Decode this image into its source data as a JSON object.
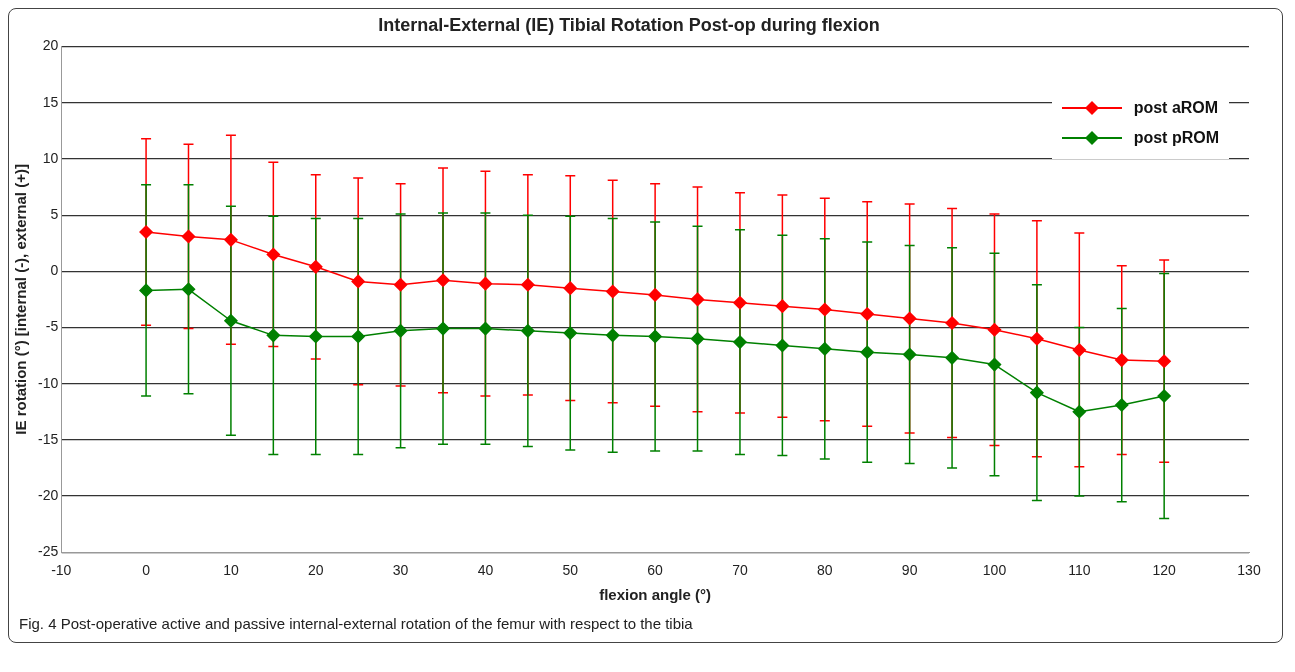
{
  "chart_data": {
    "type": "line",
    "title": "Internal-External (IE) Tibial Rotation Post-op during flexion",
    "xlabel": "flexion angle (°)",
    "ylabel": "IE rotation (°) [internal (-), external (+)]",
    "x": [
      0,
      5,
      10,
      15,
      20,
      25,
      30,
      35,
      40,
      45,
      50,
      55,
      60,
      65,
      70,
      75,
      80,
      85,
      90,
      95,
      100,
      105,
      110,
      115,
      120
    ],
    "series": [
      {
        "name": "post aROM",
        "color": "#ff0000",
        "values": [
          3.5,
          3.1,
          2.8,
          1.5,
          0.4,
          -0.9,
          -1.2,
          -0.8,
          -1.1,
          -1.2,
          -1.5,
          -1.8,
          -2.1,
          -2.5,
          -2.8,
          -3.1,
          -3.4,
          -3.8,
          -4.2,
          -4.6,
          -5.2,
          -6.0,
          -7.0,
          -7.9,
          -8.0
        ],
        "errors": [
          8.3,
          8.2,
          9.3,
          8.2,
          8.2,
          9.2,
          9.0,
          10.0,
          10.0,
          9.8,
          10.0,
          9.9,
          9.9,
          10.0,
          9.8,
          9.9,
          9.9,
          10.0,
          10.2,
          10.2,
          10.3,
          10.5,
          10.4,
          8.4,
          9.0
        ]
      },
      {
        "name": "post pROM",
        "color": "#008000",
        "values": [
          -1.7,
          -1.6,
          -4.4,
          -5.7,
          -5.8,
          -5.8,
          -5.3,
          -5.1,
          -5.1,
          -5.3,
          -5.5,
          -5.7,
          -5.8,
          -6.0,
          -6.3,
          -6.6,
          -6.9,
          -7.2,
          -7.4,
          -7.7,
          -8.3,
          -10.8,
          -12.5,
          -11.9,
          -11.1
        ],
        "errors": [
          9.4,
          9.3,
          10.2,
          10.6,
          10.5,
          10.5,
          10.4,
          10.3,
          10.3,
          10.3,
          10.4,
          10.4,
          10.2,
          10.0,
          10.0,
          9.8,
          9.8,
          9.8,
          9.7,
          9.8,
          9.9,
          9.6,
          7.5,
          8.6,
          10.9
        ]
      }
    ],
    "xlim": [
      -10,
      130
    ],
    "xticks": [
      -10,
      0,
      10,
      20,
      30,
      40,
      50,
      60,
      70,
      80,
      90,
      100,
      110,
      120,
      130
    ],
    "ylim": [
      -25,
      20
    ],
    "yticks": [
      -25,
      -20,
      -15,
      -10,
      -5,
      0,
      5,
      10,
      15,
      20
    ],
    "grid": "y",
    "legend": "top right",
    "marker": "diamond",
    "line_style": "solid",
    "annotations": [
      "Fig. 4 Post-operative active and passive internal-external rotation of the femur with respect to the tibia"
    ]
  }
}
